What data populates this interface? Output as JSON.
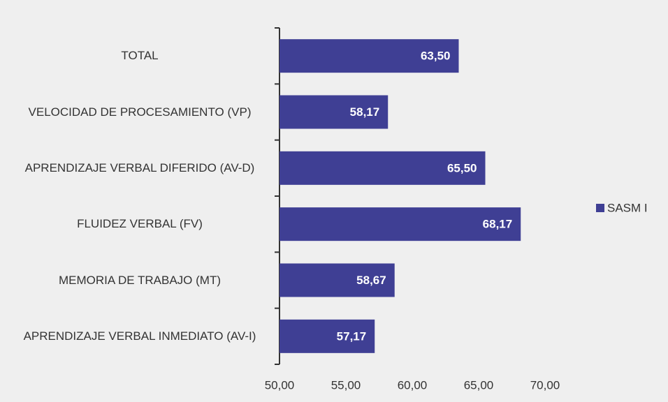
{
  "chart_data": {
    "type": "bar",
    "orientation": "horizontal",
    "categories": [
      "TOTAL",
      "VELOCIDAD DE PROCESAMIENTO (VP)",
      "APRENDIZAJE VERBAL DIFERIDO (AV-D)",
      "FLUIDEZ VERBAL (FV)",
      "MEMORIA DE TRABAJO (MT)",
      "APRENDIZAJE VERBAL INMEDIATO (AV-I)"
    ],
    "series": [
      {
        "name": "SASM I",
        "color": "#3f3f94",
        "values": [
          63.5,
          58.17,
          65.5,
          68.17,
          58.67,
          57.17
        ],
        "value_labels": [
          "63,50",
          "58,17",
          "65,50",
          "68,17",
          "58,67",
          "57,17"
        ]
      }
    ],
    "xlim": [
      50,
      70
    ],
    "xticks": [
      {
        "value": 50,
        "label": "50,00"
      },
      {
        "value": 55,
        "label": "55,00"
      },
      {
        "value": 60,
        "label": "60,00"
      },
      {
        "value": 65,
        "label": "65,00"
      },
      {
        "value": 70,
        "label": "70,00"
      }
    ],
    "legend": "right",
    "grid": false
  }
}
